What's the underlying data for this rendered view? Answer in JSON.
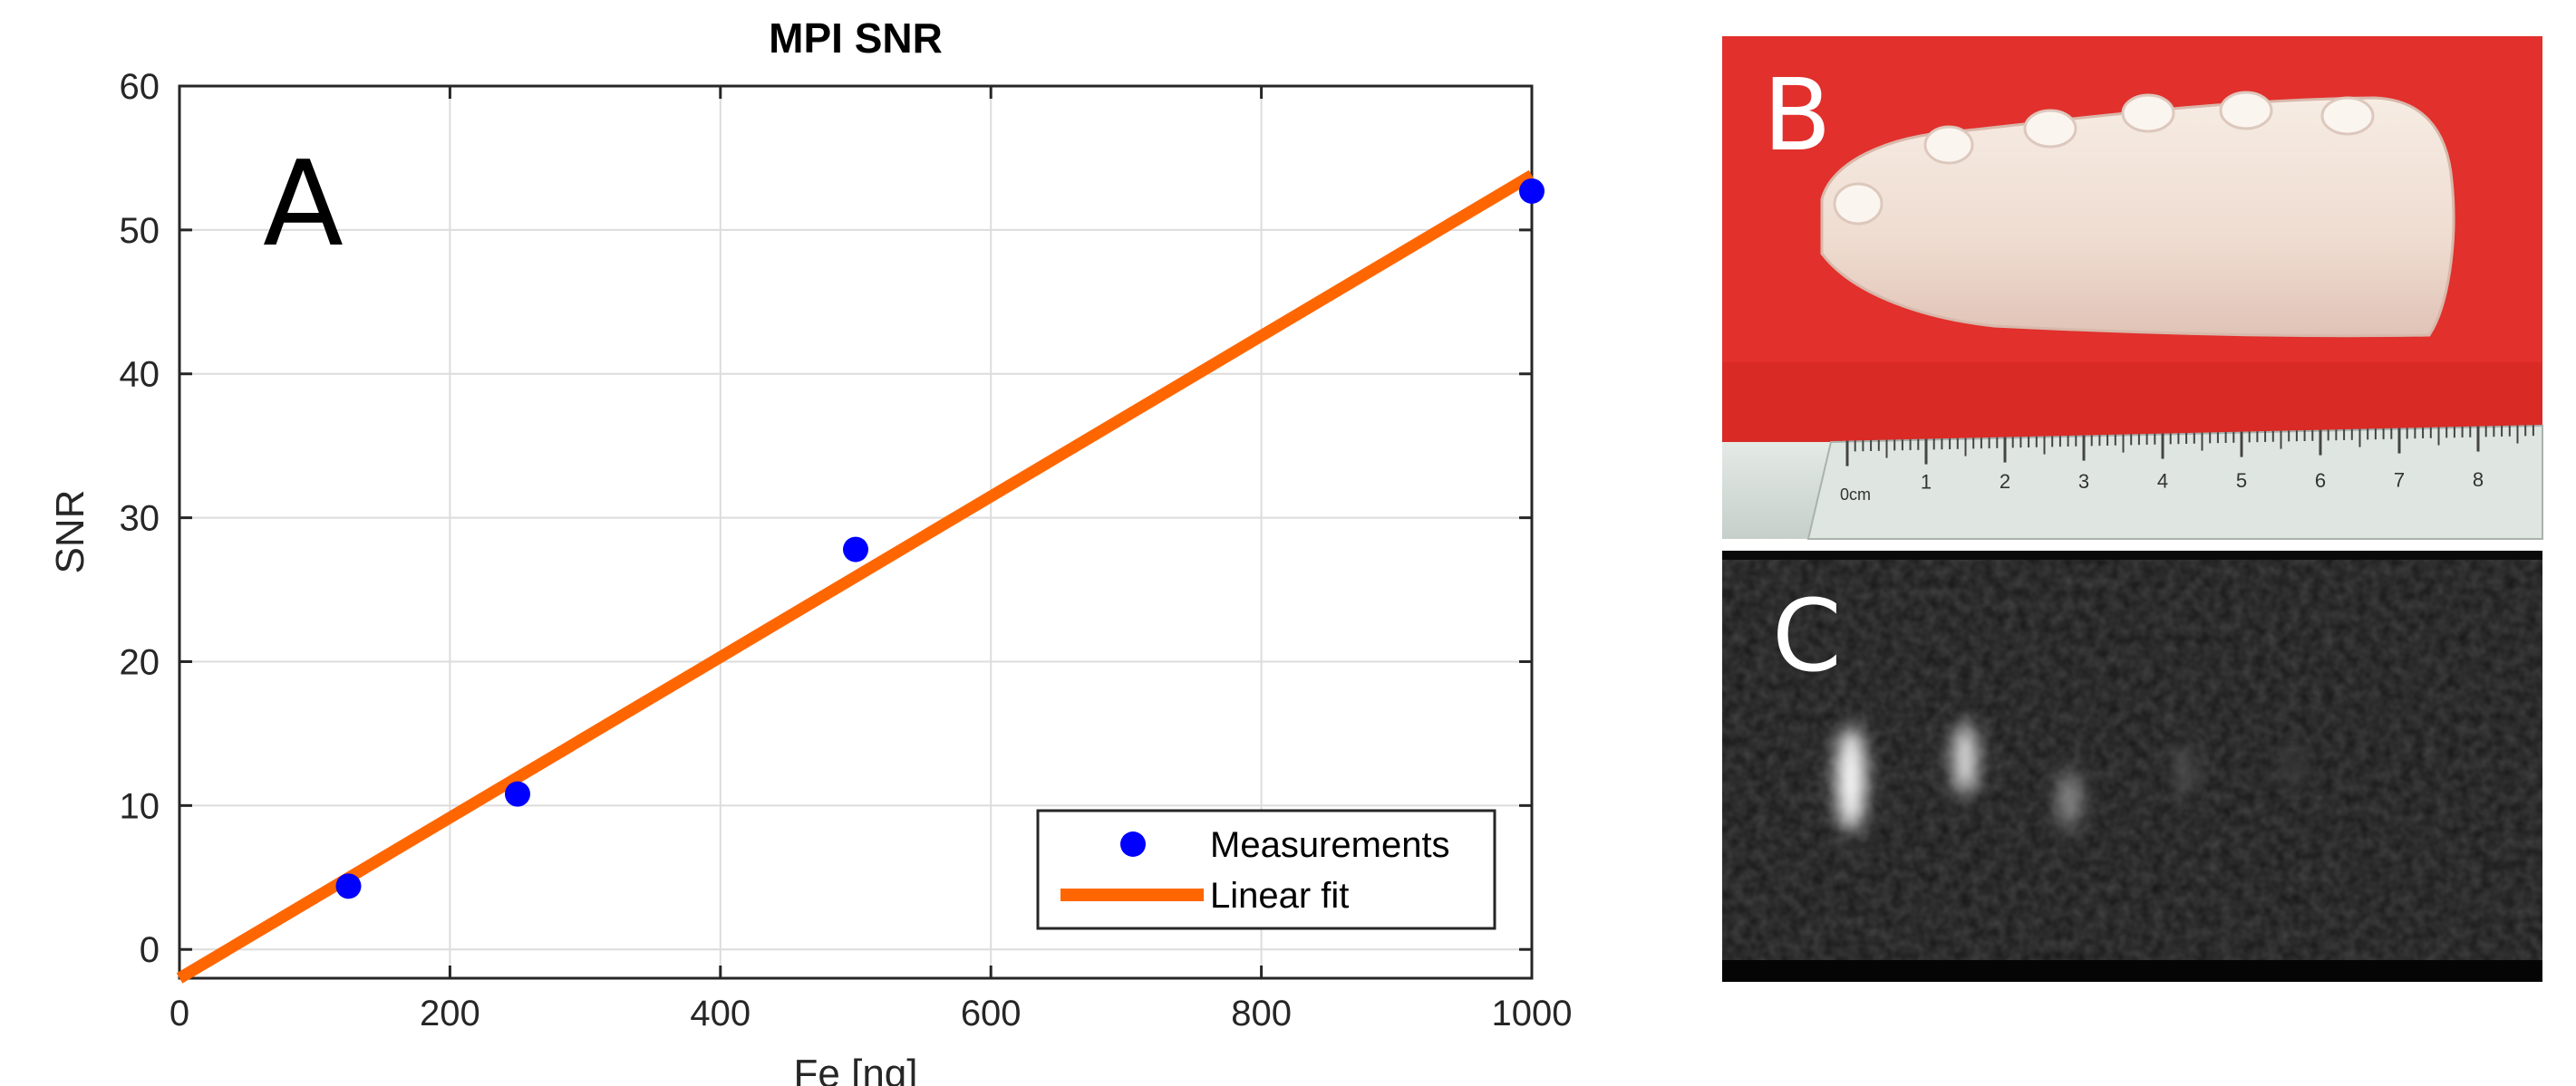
{
  "panels": {
    "a_label": "A",
    "b_label": "B",
    "c_label": "C"
  },
  "chart_data": {
    "type": "scatter",
    "title": "MPI SNR",
    "xlabel": "Fe [ng]",
    "ylabel": "SNR",
    "xlim": [
      0,
      1000
    ],
    "ylim": [
      -2,
      60
    ],
    "xticks": [
      0,
      200,
      400,
      600,
      800,
      1000
    ],
    "yticks": [
      0,
      10,
      20,
      30,
      40,
      50,
      60
    ],
    "grid": true,
    "legend_position": "bottom-right",
    "series": [
      {
        "name": "Measurements",
        "kind": "scatter",
        "color": "#0000ff",
        "x": [
          125,
          250,
          500,
          1000
        ],
        "y": [
          4.4,
          10.8,
          27.8,
          52.7
        ]
      },
      {
        "name": "Linear fit",
        "kind": "line",
        "color": "#ff6600",
        "x": [
          0,
          1000
        ],
        "y": [
          -2,
          53.8
        ]
      }
    ]
  },
  "photo": {
    "background_color": "#e2302c",
    "tissue_color": "#f1e3d9",
    "ruler_color": "#d6ddd8",
    "ruler_unit": "0cm",
    "ruler_numbers": [
      "1",
      "2",
      "3",
      "4",
      "5",
      "6",
      "7",
      "8"
    ]
  },
  "mpi_image": {
    "background_color": "#1a1a1a"
  }
}
